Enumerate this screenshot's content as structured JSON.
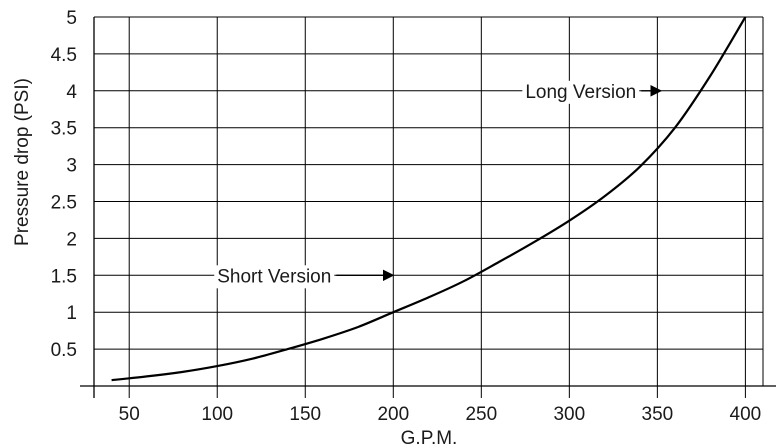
{
  "chart_data": {
    "type": "line",
    "xlabel": "G.P.M.",
    "ylabel": "Pressure drop (PSI)",
    "xlim": [
      30,
      410
    ],
    "ylim": [
      0,
      5
    ],
    "x_ticks": [
      50,
      100,
      150,
      200,
      250,
      300,
      350,
      400
    ],
    "x_tick_labels": [
      "50",
      "100",
      "150",
      "200",
      "250",
      "300",
      "350",
      "400"
    ],
    "y_ticks": [
      0.5,
      1,
      1.5,
      2,
      2.5,
      3,
      3.5,
      4,
      4.5,
      5
    ],
    "y_tick_labels": [
      "0.5",
      "1",
      "1.5",
      "2",
      "2.5",
      "3",
      "3.5",
      "4",
      "4.5",
      "5"
    ],
    "grid": true,
    "series": [
      {
        "x": [
          40,
          60,
          80,
          100,
          120,
          140,
          160,
          180,
          200,
          220,
          240,
          260,
          280,
          300,
          320,
          340,
          360,
          380,
          400
        ],
        "y": [
          0.08,
          0.13,
          0.19,
          0.27,
          0.37,
          0.5,
          0.64,
          0.8,
          1.0,
          1.2,
          1.42,
          1.68,
          1.95,
          2.24,
          2.57,
          2.97,
          3.5,
          4.2,
          5.0
        ]
      }
    ],
    "annotations": [
      {
        "text": "Short Version",
        "label_x": 100,
        "y": 1.5,
        "arrow_to_x": 200
      },
      {
        "text": "Long Version",
        "label_x": 275,
        "y": 4,
        "arrow_to_x": 352
      }
    ]
  }
}
